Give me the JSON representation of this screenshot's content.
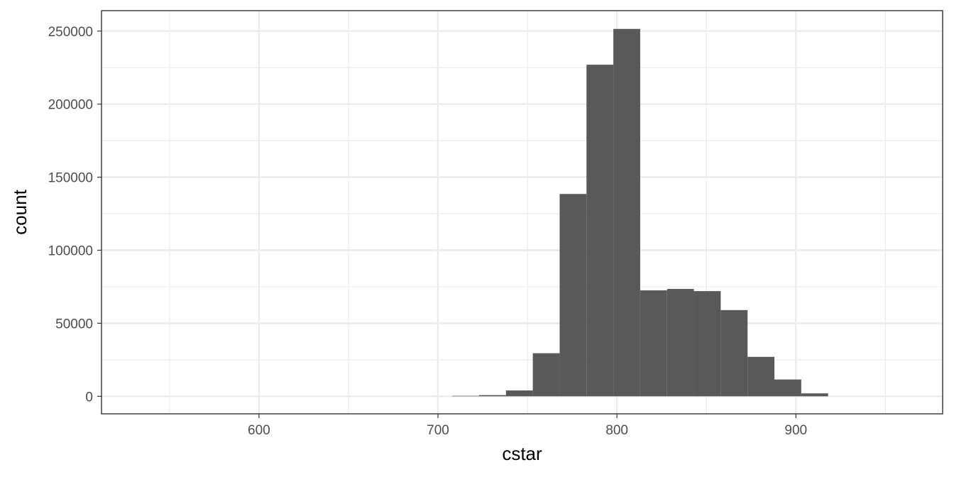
{
  "chart_data": {
    "type": "bar",
    "subtype": "histogram",
    "title": "",
    "xlabel": "cstar",
    "ylabel": "count",
    "xlim": [
      512,
      982
    ],
    "ylim": [
      -12000,
      264000
    ],
    "x_ticks": [
      600,
      700,
      800,
      900
    ],
    "x_tick_labels": [
      "600",
      "700",
      "800",
      "900"
    ],
    "y_ticks": [
      0,
      50000,
      100000,
      150000,
      200000,
      250000
    ],
    "y_tick_labels": [
      "0",
      "50000",
      "100000",
      "150000",
      "200000",
      "250000"
    ],
    "bin_width": 15,
    "bins": [
      {
        "x0": 708,
        "x1": 723,
        "count": 300
      },
      {
        "x0": 723,
        "x1": 738,
        "count": 800
      },
      {
        "x0": 738,
        "x1": 753,
        "count": 4000
      },
      {
        "x0": 753,
        "x1": 768,
        "count": 29500
      },
      {
        "x0": 768,
        "x1": 783,
        "count": 138500
      },
      {
        "x0": 783,
        "x1": 798,
        "count": 227000
      },
      {
        "x0": 798,
        "x1": 813,
        "count": 251500
      },
      {
        "x0": 813,
        "x1": 828,
        "count": 72500
      },
      {
        "x0": 828,
        "x1": 843,
        "count": 73500
      },
      {
        "x0": 843,
        "x1": 858,
        "count": 72000
      },
      {
        "x0": 858,
        "x1": 873,
        "count": 59000
      },
      {
        "x0": 873,
        "x1": 888,
        "count": 27000
      },
      {
        "x0": 888,
        "x1": 903,
        "count": 11500
      },
      {
        "x0": 903,
        "x1": 918,
        "count": 2000
      }
    ],
    "bar_color": "#595959",
    "grid": true,
    "grid_color": "#ebebeb",
    "panel_border_color": "#333333",
    "background": "#ffffff",
    "legend": "none"
  }
}
